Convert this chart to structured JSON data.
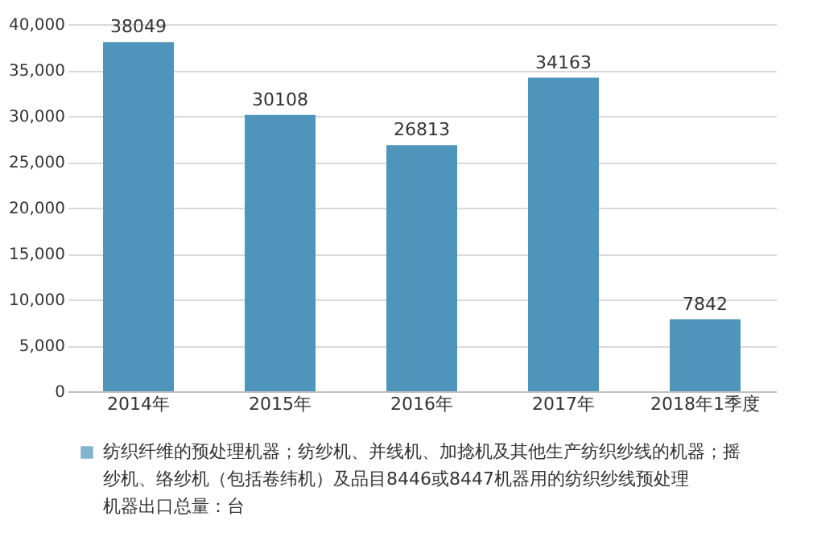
{
  "chart_data": {
    "type": "bar",
    "categories": [
      "2014年",
      "2015年",
      "2016年",
      "2017年",
      "2018年1季度"
    ],
    "series": [
      {
        "name": "纺织纤维的预处理机器；纺纱机、并线机、加捻机及其他生产纺织纱线的机器；摇纱机、络纱机（包括卷纬机）及品目8446或8447机器用的纺织纱线预处理机器出口总量：台",
        "color": "#4f94ba",
        "values": [
          38049,
          30108,
          26813,
          34163,
          7842
        ]
      }
    ],
    "ylim": [
      0,
      40000
    ],
    "yticks": [
      0,
      {
        "value": 5000,
        "label": "5,000"
      },
      {
        "value": 10000,
        "label": "10,000"
      },
      {
        "value": 15000,
        "label": "15,000"
      },
      {
        "value": 20000,
        "label": "20,000"
      },
      {
        "value": 25000,
        "label": "25,000"
      },
      {
        "value": 30000,
        "label": "30,000"
      },
      {
        "value": 35000,
        "label": "35,000"
      },
      {
        "value": 40000,
        "label": "40,000"
      }
    ],
    "grid": "y",
    "legend": "bottom",
    "data_labels": true
  }
}
